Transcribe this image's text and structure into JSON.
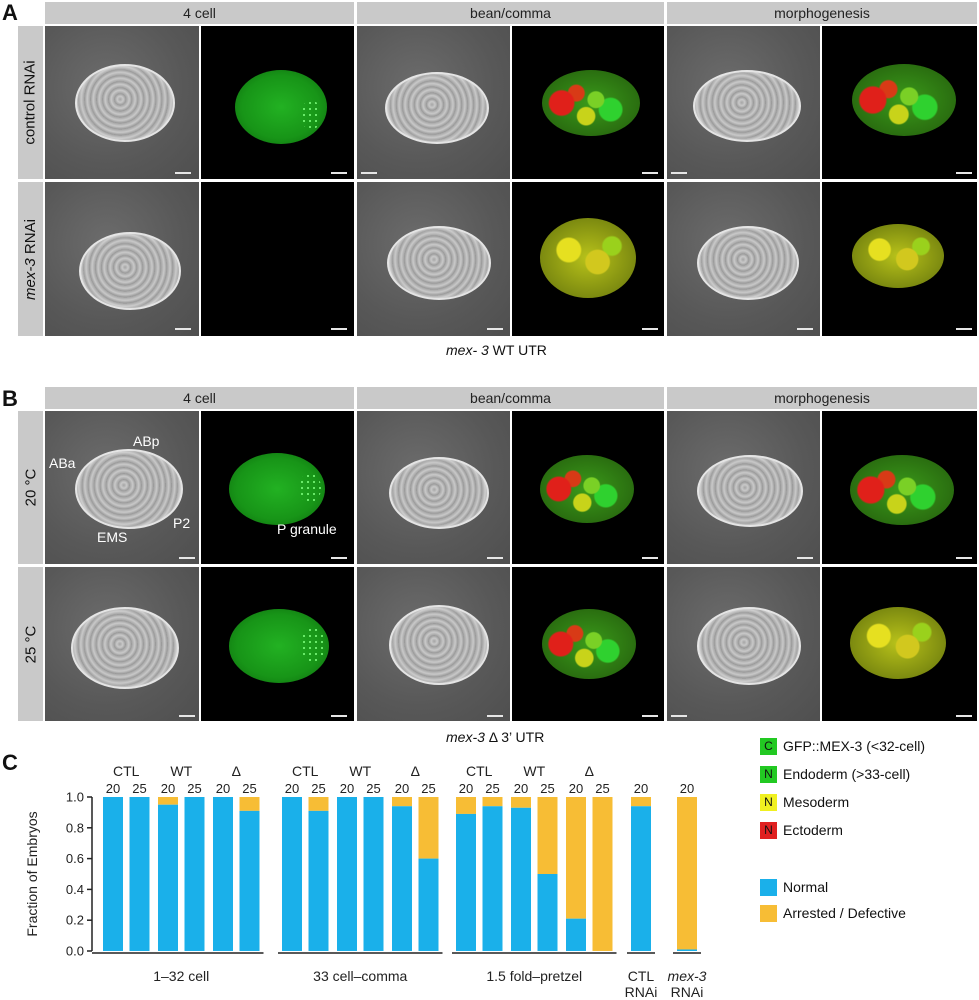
{
  "panelA": {
    "letter": "A",
    "columns": [
      "4 cell",
      "bean/comma",
      "morphogenesis"
    ],
    "rows": [
      "control RNAi",
      "RNAi"
    ],
    "row2_italic": "mex-3",
    "caption_italic": "mex- 3",
    "caption_rest": " WT UTR"
  },
  "panelB": {
    "letter": "B",
    "columns": [
      "4 cell",
      "bean/comma",
      "morphogenesis"
    ],
    "rows": [
      "20 °C",
      "25 °C"
    ],
    "cell_labels": {
      "aba": "ABa",
      "abp": "ABp",
      "ems": "EMS",
      "p2": "P2",
      "pgranule": "P granule"
    },
    "caption_italic": "mex-3",
    "caption_rest": " Δ 3’ UTR"
  },
  "panelC": {
    "letter": "C",
    "legend_markers": [
      {
        "key": "C",
        "label": "GFP::MEX-3 (<32-cell)",
        "color": "#22c922",
        "text_color": "#111"
      },
      {
        "key": "N",
        "label": "Endoderm (>33-cell)",
        "color": "#22c922",
        "text_color": "#111"
      },
      {
        "key": "N",
        "label": "Mesoderm",
        "color": "#f0f020",
        "text_color": "#111"
      },
      {
        "key": "N",
        "label": "Ectoderm",
        "color": "#e02020",
        "text_color": "#111"
      }
    ],
    "legend_series": [
      {
        "label": "Normal",
        "color": "#1ab0ea"
      },
      {
        "label": "Arrested / Defective",
        "color": "#f7bd35"
      }
    ]
  },
  "chart_data": {
    "type": "bar",
    "ylabel": "Fraction of Embryos",
    "ylim": [
      0,
      1.0
    ],
    "yticks": [
      "0.0",
      "0.2",
      "0.4",
      "0.6",
      "0.8",
      "1.0"
    ],
    "series_names": [
      "Normal",
      "Arrested / Defective"
    ],
    "groups": [
      {
        "label": "1–32 cell",
        "label_italic": "",
        "subgroups": [
          "CTL",
          "WT",
          "Δ"
        ],
        "temps": [
          "20",
          "25",
          "20",
          "25",
          "20",
          "25"
        ],
        "normal": [
          1.0,
          1.0,
          0.95,
          1.0,
          1.0,
          0.91
        ]
      },
      {
        "label": "33 cell–comma",
        "label_italic": "",
        "subgroups": [
          "CTL",
          "WT",
          "Δ"
        ],
        "temps": [
          "20",
          "25",
          "20",
          "25",
          "20",
          "25"
        ],
        "normal": [
          1.0,
          0.91,
          1.0,
          1.0,
          0.94,
          0.6
        ]
      },
      {
        "label": "1.5 fold–pretzel",
        "label_italic": "",
        "subgroups": [
          "CTL",
          "WT",
          "Δ"
        ],
        "temps": [
          "20",
          "25",
          "20",
          "25",
          "20",
          "25"
        ],
        "normal": [
          0.89,
          0.94,
          0.93,
          0.5,
          0.21,
          0.0
        ]
      },
      {
        "label": "CTL RNAi",
        "label_line1": "CTL",
        "label_line2": "RNAi",
        "italic_line1": false,
        "subgroups": [],
        "temps": [
          "20"
        ],
        "normal": [
          0.94
        ]
      },
      {
        "label": "mex-3 RNAi",
        "label_line1": "mex-3",
        "label_line2": "RNAi",
        "italic_line1": true,
        "subgroups": [],
        "temps": [
          "20"
        ],
        "normal": [
          0.01
        ]
      }
    ]
  }
}
